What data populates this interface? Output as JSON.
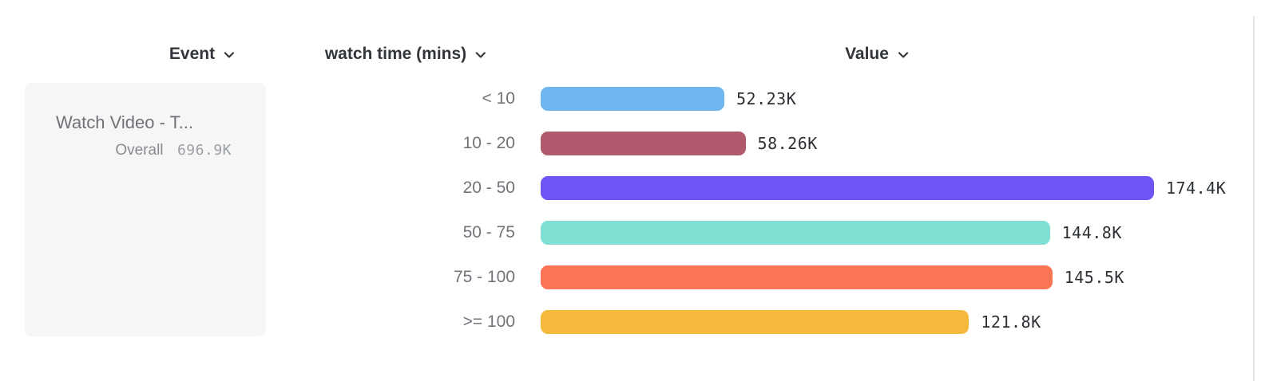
{
  "header": {
    "event_label": "Event",
    "breakdown_label": "watch time (mins)",
    "value_label": "Value"
  },
  "event_card": {
    "title": "Watch Video - T...",
    "overall_label": "Overall",
    "overall_value": "696.9K"
  },
  "chart_data": {
    "type": "bar",
    "orientation": "horizontal",
    "title": "",
    "xlabel": "Value",
    "ylabel": "watch time (mins)",
    "categories": [
      "< 10",
      "10 - 20",
      "20 - 50",
      "50 - 75",
      "75 - 100",
      ">= 100"
    ],
    "values": [
      52.23,
      58.26,
      174.4,
      144.8,
      145.5,
      121.8
    ],
    "value_labels": [
      "52.23K",
      "58.26K",
      "174.4K",
      "144.8K",
      "145.5K",
      "121.8K"
    ],
    "unit": "K (thousands)",
    "colors": [
      "#6FB7F0",
      "#B25A6D",
      "#7053F5",
      "#7EDFD3",
      "#FB7456",
      "#F5B93E"
    ],
    "xlim": [
      0,
      174.4
    ],
    "grid": false,
    "legend": false
  },
  "colors": {
    "panel_bg": "#F6F6F7",
    "divider": "#E4E4E6",
    "header_text": "#32363B",
    "segment_label_text": "#70747A",
    "value_text": "#2D3136"
  }
}
